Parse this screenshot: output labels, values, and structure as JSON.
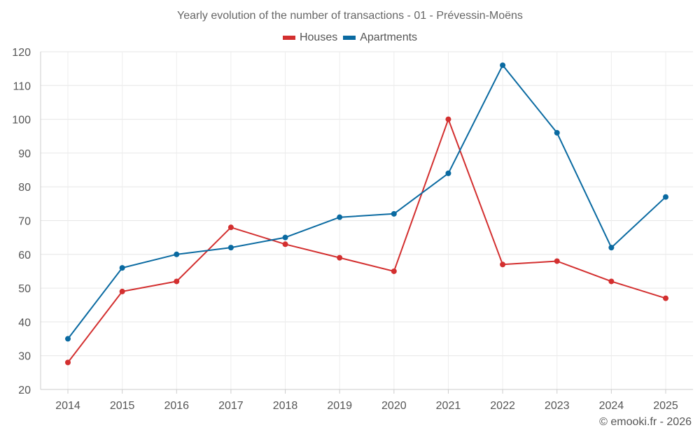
{
  "chart_data": {
    "type": "line",
    "title": "Yearly evolution of the number of transactions - 01 - Prévessin-Moëns",
    "categories": [
      "2014",
      "2015",
      "2016",
      "2017",
      "2018",
      "2019",
      "2020",
      "2021",
      "2022",
      "2023",
      "2024",
      "2025"
    ],
    "series": [
      {
        "name": "Houses",
        "color": "#d32f2f",
        "values": [
          28,
          49,
          52,
          68,
          63,
          59,
          55,
          100,
          57,
          58,
          52,
          47
        ]
      },
      {
        "name": "Apartments",
        "color": "#0a6aa1",
        "values": [
          35,
          56,
          60,
          62,
          65,
          71,
          72,
          84,
          116,
          96,
          62,
          77
        ]
      }
    ],
    "ylim": [
      20,
      120
    ],
    "yticks": [
      20,
      30,
      40,
      50,
      60,
      70,
      80,
      90,
      100,
      110,
      120
    ],
    "xlabel": "",
    "ylabel": "",
    "grid": true,
    "legend_position": "top-center"
  },
  "credit": "© emooki.fr - 2026"
}
